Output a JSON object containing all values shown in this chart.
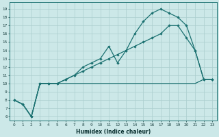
{
  "bg_color": "#cce8e8",
  "line_color": "#1a7070",
  "grid_color": "#aacece",
  "xlabel": "Humidex (Indice chaleur)",
  "ylim": [
    5.5,
    19.8
  ],
  "xlim": [
    -0.5,
    23.5
  ],
  "yticks": [
    6,
    7,
    8,
    9,
    10,
    11,
    12,
    13,
    14,
    15,
    16,
    17,
    18,
    19
  ],
  "xticks": [
    0,
    1,
    2,
    3,
    4,
    5,
    6,
    7,
    8,
    9,
    10,
    11,
    12,
    13,
    14,
    15,
    16,
    17,
    18,
    19,
    20,
    21,
    22,
    23
  ],
  "line_flat_x": [
    0,
    1,
    2,
    3,
    4,
    5,
    6,
    7,
    8,
    9,
    10,
    11,
    12,
    13,
    14,
    15,
    16,
    17,
    18,
    19,
    20,
    21,
    22,
    23
  ],
  "line_flat_y": [
    8.0,
    7.5,
    6.0,
    10.0,
    10.0,
    10.0,
    10.0,
    10.0,
    10.0,
    10.0,
    10.0,
    10.0,
    10.0,
    10.0,
    10.0,
    10.0,
    10.0,
    10.0,
    10.0,
    10.0,
    10.0,
    10.0,
    10.5,
    10.5
  ],
  "line_mid_x": [
    0,
    1,
    2,
    3,
    4,
    5,
    6,
    7,
    8,
    9,
    10,
    11,
    12,
    13,
    14,
    15,
    16,
    17,
    18,
    19,
    20,
    21,
    22,
    23
  ],
  "line_mid_y": [
    8.0,
    7.5,
    6.0,
    10.0,
    10.0,
    10.0,
    10.5,
    11.0,
    11.5,
    12.0,
    12.5,
    13.0,
    13.5,
    14.0,
    14.5,
    15.0,
    15.5,
    16.0,
    17.0,
    17.0,
    15.5,
    14.0,
    10.5,
    10.5
  ],
  "line_top_x": [
    0,
    1,
    2,
    3,
    4,
    5,
    6,
    7,
    8,
    9,
    10,
    11,
    12,
    13,
    14,
    15,
    16,
    17,
    18,
    19,
    20,
    21,
    22,
    23
  ],
  "line_top_y": [
    8.0,
    7.5,
    6.0,
    10.0,
    10.0,
    10.0,
    10.5,
    11.0,
    12.0,
    12.5,
    13.0,
    14.5,
    12.5,
    14.0,
    16.0,
    17.5,
    18.5,
    19.0,
    18.5,
    18.0,
    17.0,
    14.0,
    10.5,
    10.5
  ]
}
